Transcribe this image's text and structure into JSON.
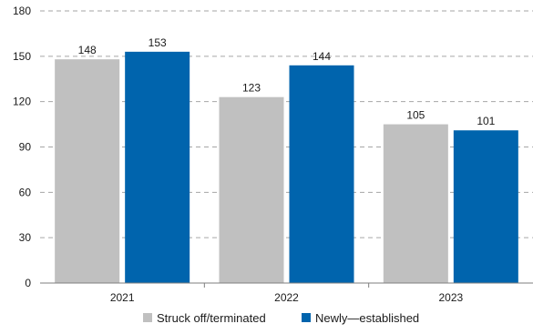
{
  "chart_data": {
    "type": "bar",
    "categories": [
      "2021",
      "2022",
      "2023"
    ],
    "series": [
      {
        "name": "Struck off/terminated",
        "values": [
          148,
          123,
          105
        ],
        "color": "#c0c0c0"
      },
      {
        "name": "Newly—established",
        "values": [
          153,
          144,
          101
        ],
        "color": "#0064ad"
      }
    ],
    "yticks": [
      0,
      30,
      60,
      90,
      120,
      150,
      180
    ],
    "ylim": [
      0,
      180
    ],
    "grid": true,
    "grid_style": "dashed",
    "legend_position": "bottom-center",
    "data_labels": true
  }
}
